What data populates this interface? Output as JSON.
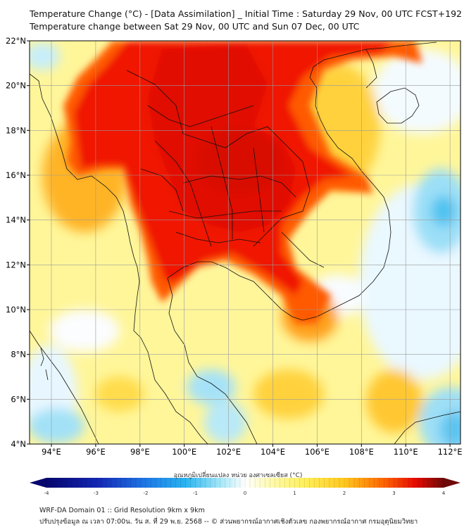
{
  "title_line1": "Temperature Change (°C) - [Data Assimilation] _ Initial Time : Saturday 29 Nov, 00 UTC FCST+192",
  "title_line2": "Temperature change between Sat 29 Nov, 00 UTC and Sun 07 Dec, 00 UTC",
  "lat_labels": [
    "22°N",
    "20°N",
    "18°N",
    "16°N",
    "14°N",
    "12°N",
    "10°N",
    "8°N",
    "6°N",
    "4°N"
  ],
  "lon_labels": [
    "94°E",
    "96°E",
    "98°E",
    "100°E",
    "102°E",
    "104°E",
    "106°E",
    "108°E",
    "110°E",
    "112°E"
  ],
  "colorbar": {
    "title": "อุณหภูมิเปลี่ยนแปลง หน่วย องศาเซลเซียส (°C)",
    "ticks": [
      "-4",
      "-3",
      "-2",
      "-1",
      "0",
      "1",
      "2",
      "3",
      "4"
    ],
    "min": -4,
    "max": 4
  },
  "footer_line1": "WRF-DA Domain 01 :: Grid Resolution 9km x 9km",
  "footer_line2": "ปรับปรุงข้อมูล ณ เวลา 07:00น. วัน ส. ที่ 29 พ.ย. 2568 -- © ส่วนพยากรณ์อากาศเชิงตัวเลข กองพยากรณ์อากาศ กรมอุตุนิยมวิทยา",
  "colors": {
    "neg4": "#08087a",
    "neg3": "#1e3cc8",
    "neg2": "#1ea0f0",
    "neg1": "#78d7f5",
    "zero": "#ffffff",
    "pos1": "#fff58c",
    "pos2": "#ffc81e",
    "pos3": "#ff5a00",
    "pos4": "#6e0a0a"
  }
}
